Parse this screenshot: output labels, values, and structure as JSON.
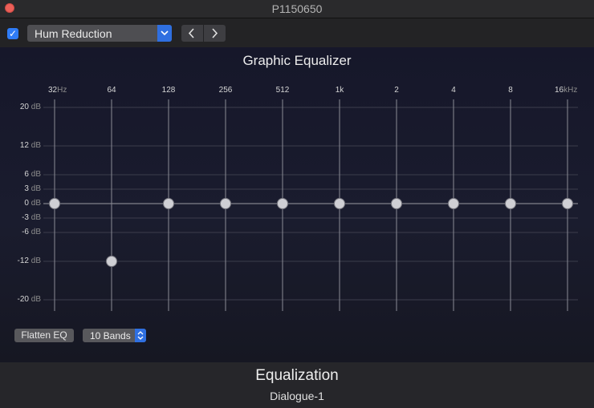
{
  "window": {
    "title": "P1150650"
  },
  "toolbar": {
    "enabled_check": "✓",
    "preset_label": "Hum Reduction",
    "prev_glyph": "‹",
    "next_glyph": "›"
  },
  "equalizer": {
    "title": "Graphic Equalizer",
    "frequency_labels": [
      {
        "value": "32",
        "unit": "Hz"
      },
      {
        "value": "64",
        "unit": ""
      },
      {
        "value": "128",
        "unit": ""
      },
      {
        "value": "256",
        "unit": ""
      },
      {
        "value": "512",
        "unit": ""
      },
      {
        "value": "1k",
        "unit": ""
      },
      {
        "value": "2",
        "unit": ""
      },
      {
        "value": "4",
        "unit": ""
      },
      {
        "value": "8",
        "unit": ""
      },
      {
        "value": "16",
        "unit": "kHz"
      }
    ],
    "db_scale": [
      {
        "value": "20",
        "unit": "dB"
      },
      {
        "value": "12",
        "unit": "dB"
      },
      {
        "value": "6",
        "unit": "dB"
      },
      {
        "value": "3",
        "unit": "dB"
      },
      {
        "value": "0",
        "unit": "dB"
      },
      {
        "value": "-3",
        "unit": "dB"
      },
      {
        "value": "-6",
        "unit": "dB"
      },
      {
        "value": "-12",
        "unit": "dB"
      },
      {
        "value": "-20",
        "unit": "dB"
      }
    ],
    "band_gains_db": [
      0,
      -12,
      0,
      0,
      0,
      0,
      0,
      0,
      0,
      0
    ],
    "flatten_label": "Flatten EQ",
    "bands_label": "10 Bands"
  },
  "footer": {
    "title": "Equalization",
    "subtitle": "Dialogue-1"
  },
  "colors": {
    "accent": "#2f6fe0",
    "close": "#ec5f58",
    "panel": "#1a1c2e"
  }
}
